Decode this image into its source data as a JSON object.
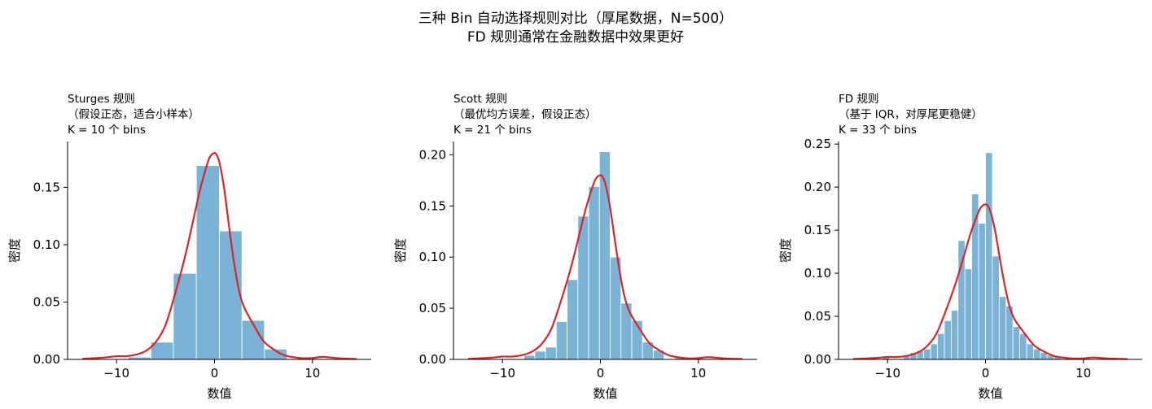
{
  "figure": {
    "title_line1": "三种 Bin 自动选择规则对比（厚尾数据，N=500）",
    "title_line2": "FD 规则通常在金融数据中效果更好"
  },
  "colors": {
    "bar": "#7bb3d6",
    "bar_edge": "#ffffff",
    "kde": "#d62728",
    "axis": "#000000"
  },
  "chart_data": [
    {
      "type": "bar",
      "title_lines": [
        "Sturges 规则",
        "（假设正态，适合小样本）",
        "K = 10 个 bins"
      ],
      "xlabel": "数值",
      "ylabel": "密度",
      "xlim": [
        -15,
        16
      ],
      "ylim": [
        0,
        0.19
      ],
      "xticks": [
        -10,
        0,
        10
      ],
      "yticks": [
        0.0,
        0.05,
        0.1,
        0.15
      ],
      "ytick_labels": [
        "0.00",
        "0.05",
        "0.10",
        "0.15"
      ],
      "grid": false,
      "bin_edges": [
        -13.3,
        -11.0,
        -8.8,
        -6.5,
        -4.2,
        -1.85,
        0.5,
        2.8,
        5.1,
        7.4,
        9.7
      ],
      "values": [
        0.0,
        0.0,
        0.002,
        0.015,
        0.075,
        0.169,
        0.112,
        0.034,
        0.009,
        0.0
      ],
      "kde": {
        "x": [
          -13.5,
          -12,
          -11,
          -10,
          -9,
          -8,
          -7,
          -6,
          -5,
          -4,
          -3,
          -2,
          -1.5,
          -1,
          -0.5,
          0,
          0.3,
          0.6,
          1,
          1.5,
          2,
          2.5,
          3,
          4,
          5,
          6,
          7,
          8,
          9,
          10,
          11,
          12,
          13,
          14.5
        ],
        "y": [
          0.0005,
          0.0012,
          0.0018,
          0.0028,
          0.0028,
          0.0042,
          0.0075,
          0.015,
          0.03,
          0.058,
          0.09,
          0.128,
          0.147,
          0.163,
          0.176,
          0.18,
          0.177,
          0.168,
          0.148,
          0.115,
          0.084,
          0.06,
          0.046,
          0.03,
          0.016,
          0.009,
          0.004,
          0.002,
          0.001,
          0.0012,
          0.0022,
          0.0015,
          0.0008,
          0.0004
        ]
      }
    },
    {
      "type": "bar",
      "title_lines": [
        "Scott 规则",
        "（最优均方误差，假设正态）",
        "K = 21 个 bins"
      ],
      "xlabel": "数值",
      "ylabel": "密度",
      "xlim": [
        -15,
        16
      ],
      "ylim": [
        0,
        0.213
      ],
      "xticks": [
        -10,
        0,
        10
      ],
      "yticks": [
        0.0,
        0.05,
        0.1,
        0.15,
        0.2
      ],
      "ytick_labels": [
        "0.00",
        "0.05",
        "0.10",
        "0.15",
        "0.20"
      ],
      "grid": false,
      "bin_edges": [
        -13.3,
        -12.2,
        -11.1,
        -10.0,
        -8.9,
        -7.8,
        -6.7,
        -5.6,
        -4.5,
        -3.4,
        -2.3,
        -1.2,
        -0.1,
        1.0,
        2.1,
        3.2,
        4.3,
        5.4,
        6.5,
        7.6,
        8.7,
        9.8
      ],
      "values": [
        0.0,
        0.0,
        0.0,
        0.0,
        0.0,
        0.004,
        0.008,
        0.012,
        0.037,
        0.078,
        0.14,
        0.169,
        0.203,
        0.1,
        0.055,
        0.038,
        0.017,
        0.009,
        0.0,
        0.002,
        0.0
      ],
      "kde": {
        "x": [
          -13.5,
          -12,
          -11,
          -10,
          -9,
          -8,
          -7,
          -6,
          -5,
          -4,
          -3,
          -2,
          -1.5,
          -1,
          -0.5,
          0,
          0.3,
          0.6,
          1,
          1.5,
          2,
          2.5,
          3,
          4,
          5,
          6,
          7,
          8,
          9,
          10,
          11,
          12,
          13,
          14.5
        ],
        "y": [
          0.0005,
          0.0012,
          0.0018,
          0.0028,
          0.0028,
          0.0042,
          0.0075,
          0.015,
          0.03,
          0.058,
          0.09,
          0.128,
          0.147,
          0.163,
          0.176,
          0.18,
          0.177,
          0.168,
          0.148,
          0.115,
          0.084,
          0.06,
          0.046,
          0.03,
          0.016,
          0.009,
          0.004,
          0.002,
          0.001,
          0.0012,
          0.0022,
          0.0015,
          0.0008,
          0.0004
        ]
      }
    },
    {
      "type": "bar",
      "title_lines": [
        "FD 规则",
        "（基于 IQR，对厚尾更稳健）",
        "K = 33 个 bins"
      ],
      "xlabel": "数值",
      "ylabel": "密度",
      "xlim": [
        -15,
        16
      ],
      "ylim": [
        0,
        0.253
      ],
      "xticks": [
        -10,
        0,
        10
      ],
      "yticks": [
        0.0,
        0.05,
        0.1,
        0.15,
        0.2,
        0.25
      ],
      "ytick_labels": [
        "0.00",
        "0.05",
        "0.10",
        "0.15",
        "0.20",
        "0.25"
      ],
      "grid": false,
      "bin_edges": [
        -13.3,
        -12.6,
        -11.9,
        -11.2,
        -10.5,
        -9.8,
        -9.1,
        -8.4,
        -7.7,
        -7.0,
        -6.3,
        -5.6,
        -4.9,
        -4.2,
        -3.5,
        -2.8,
        -2.1,
        -1.4,
        -0.7,
        0.0,
        0.7,
        1.4,
        2.1,
        2.8,
        3.5,
        4.2,
        4.9,
        5.6,
        6.3,
        7.0,
        7.7,
        8.4,
        9.1,
        9.8
      ],
      "values": [
        0.0,
        0.0,
        0.0,
        0.0,
        0.003,
        0.0,
        0.0,
        0.005,
        0.008,
        0.01,
        0.012,
        0.018,
        0.03,
        0.045,
        0.057,
        0.138,
        0.105,
        0.192,
        0.158,
        0.24,
        0.12,
        0.073,
        0.062,
        0.038,
        0.03,
        0.018,
        0.012,
        0.008,
        0.005,
        0.003,
        0.0,
        0.002,
        0.0
      ],
      "kde": {
        "x": [
          -13.5,
          -12,
          -11,
          -10,
          -9,
          -8,
          -7,
          -6,
          -5,
          -4,
          -3,
          -2,
          -1.5,
          -1,
          -0.5,
          0,
          0.3,
          0.6,
          1,
          1.5,
          2,
          2.5,
          3,
          4,
          5,
          6,
          7,
          8,
          9,
          10,
          11,
          12,
          13,
          14.5
        ],
        "y": [
          0.0005,
          0.0012,
          0.0018,
          0.0028,
          0.0028,
          0.0042,
          0.0075,
          0.015,
          0.03,
          0.058,
          0.09,
          0.128,
          0.147,
          0.163,
          0.176,
          0.18,
          0.177,
          0.168,
          0.148,
          0.115,
          0.084,
          0.06,
          0.046,
          0.03,
          0.016,
          0.009,
          0.004,
          0.002,
          0.001,
          0.0012,
          0.0022,
          0.0015,
          0.0008,
          0.0004
        ]
      }
    }
  ]
}
